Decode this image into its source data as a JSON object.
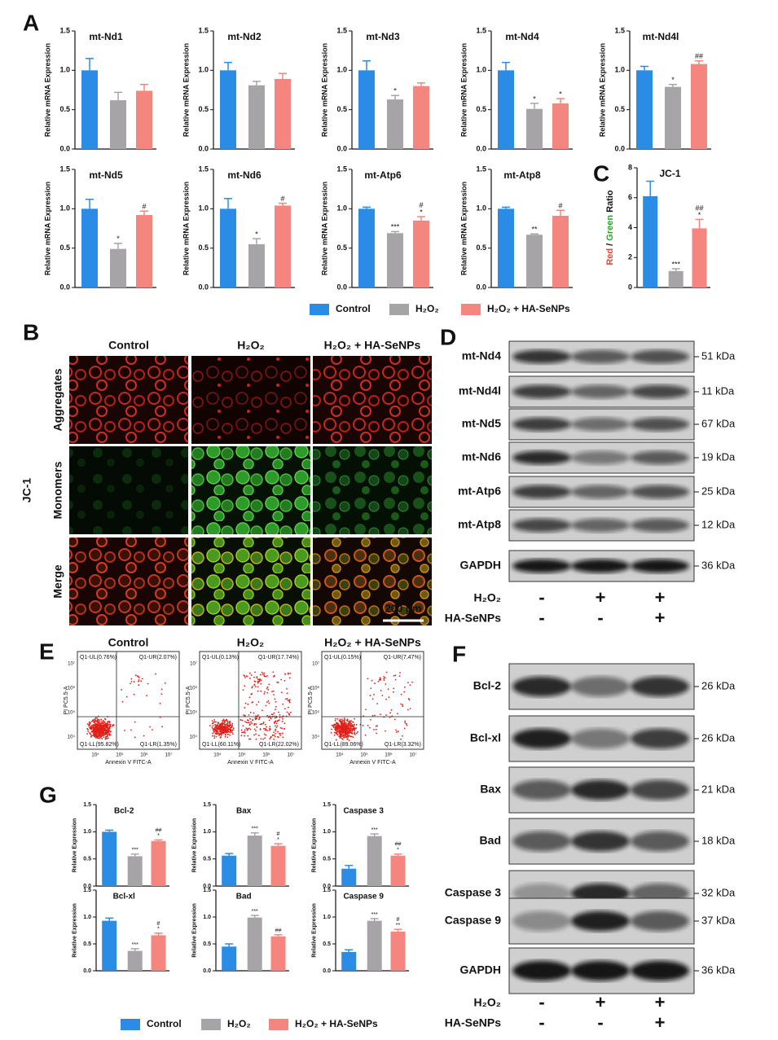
{
  "figure_labels": {
    "a": "A",
    "b": "B",
    "c": "C",
    "d": "D",
    "e": "E",
    "f": "F",
    "g": "G"
  },
  "chart_data": [
    {
      "type": "bar",
      "title": "mt-Nd1",
      "ylabel": "Relative mRNA Expression",
      "ylim": [
        0,
        1.5
      ],
      "yticks": [
        {
          "value": 0,
          "label": "0.0"
        },
        0.5,
        {
          "value": 1,
          "label": "1.0"
        },
        1.5
      ],
      "values": [
        1.0,
        0.62,
        0.74
      ],
      "errors": [
        0.15,
        0.1,
        0.08
      ],
      "annotations": [
        [],
        [],
        []
      ],
      "colors": [
        "#2b8ce6",
        "#a7a4a8",
        "#f5857f"
      ]
    },
    {
      "type": "bar",
      "title": "mt-Nd2",
      "ylabel": "Relative mRNA Expression",
      "ylim": [
        0,
        1.5
      ],
      "yticks": [
        {
          "value": 0,
          "label": "0.0"
        },
        0.5,
        {
          "value": 1,
          "label": "1.0"
        },
        1.5
      ],
      "values": [
        1.0,
        0.81,
        0.89
      ],
      "errors": [
        0.1,
        0.05,
        0.07
      ],
      "annotations": [
        [],
        [],
        []
      ],
      "colors": [
        "#2b8ce6",
        "#a7a4a8",
        "#f5857f"
      ]
    },
    {
      "type": "bar",
      "title": "mt-Nd3",
      "ylabel": "Relative mRNA Expression",
      "ylim": [
        0,
        1.5
      ],
      "yticks": [
        {
          "value": 0,
          "label": "0.0"
        },
        0.5,
        {
          "value": 1,
          "label": "1.0"
        },
        1.5
      ],
      "values": [
        1.0,
        0.63,
        0.8
      ],
      "errors": [
        0.12,
        0.05,
        0.04
      ],
      "annotations": [
        [],
        [
          "*"
        ],
        []
      ],
      "colors": [
        "#2b8ce6",
        "#a7a4a8",
        "#f5857f"
      ]
    },
    {
      "type": "bar",
      "title": "mt-Nd4",
      "ylabel": "Relative mRNA Expression",
      "ylim": [
        0,
        1.5
      ],
      "yticks": [
        {
          "value": 0,
          "label": "0.0"
        },
        0.5,
        {
          "value": 1,
          "label": "1.0"
        },
        1.5
      ],
      "values": [
        1.0,
        0.51,
        0.58
      ],
      "errors": [
        0.1,
        0.07,
        0.06
      ],
      "annotations": [
        [],
        [
          "*"
        ],
        [
          "*"
        ]
      ],
      "colors": [
        "#2b8ce6",
        "#a7a4a8",
        "#f5857f"
      ]
    },
    {
      "type": "bar",
      "title": "mt-Nd4l",
      "ylabel": "Relative mRNA Expression",
      "ylim": [
        0,
        1.5
      ],
      "yticks": [
        {
          "value": 0,
          "label": "0.0"
        },
        0.5,
        {
          "value": 1,
          "label": "1.0"
        },
        1.5
      ],
      "values": [
        1.0,
        0.79,
        1.08
      ],
      "errors": [
        0.05,
        0.03,
        0.04
      ],
      "annotations": [
        [],
        [
          "*"
        ],
        [
          "##"
        ]
      ],
      "colors": [
        "#2b8ce6",
        "#a7a4a8",
        "#f5857f"
      ]
    },
    {
      "type": "bar",
      "title": "mt-Nd5",
      "ylabel": "Relative mRNA Expression",
      "ylim": [
        0,
        1.5
      ],
      "yticks": [
        {
          "value": 0,
          "label": "0.0"
        },
        0.5,
        {
          "value": 1,
          "label": "1.0"
        },
        1.5
      ],
      "values": [
        1.0,
        0.49,
        0.92
      ],
      "errors": [
        0.12,
        0.07,
        0.05
      ],
      "annotations": [
        [],
        [
          "*"
        ],
        [
          "#"
        ]
      ],
      "colors": [
        "#2b8ce6",
        "#a7a4a8",
        "#f5857f"
      ]
    },
    {
      "type": "bar",
      "title": "mt-Nd6",
      "ylabel": "Relative mRNA Expression",
      "ylim": [
        0,
        1.5
      ],
      "yticks": [
        {
          "value": 0,
          "label": "0.0"
        },
        0.5,
        {
          "value": 1,
          "label": "1.0"
        },
        1.5
      ],
      "values": [
        1.0,
        0.55,
        1.04
      ],
      "errors": [
        0.13,
        0.07,
        0.03
      ],
      "annotations": [
        [],
        [
          "*"
        ],
        [
          "#"
        ]
      ],
      "colors": [
        "#2b8ce6",
        "#a7a4a8",
        "#f5857f"
      ]
    },
    {
      "type": "bar",
      "title": "mt-Atp6",
      "ylabel": "Relative mRNA Expression",
      "ylim": [
        0,
        1.5
      ],
      "yticks": [
        {
          "value": 0,
          "label": "0.0"
        },
        0.5,
        {
          "value": 1,
          "label": "1.0"
        },
        1.5
      ],
      "values": [
        1.0,
        0.69,
        0.85
      ],
      "errors": [
        0.02,
        0.02,
        0.05
      ],
      "annotations": [
        [],
        [
          "***"
        ],
        [
          "#",
          "*"
        ]
      ],
      "colors": [
        "#2b8ce6",
        "#a7a4a8",
        "#f5857f"
      ]
    },
    {
      "type": "bar",
      "title": "mt-Atp8",
      "ylabel": "Relative mRNA Expression",
      "ylim": [
        0,
        1.5
      ],
      "yticks": [
        {
          "value": 0,
          "label": "0.0"
        },
        0.5,
        {
          "value": 1,
          "label": "1.0"
        },
        1.5
      ],
      "values": [
        1.0,
        0.67,
        0.91
      ],
      "errors": [
        0.02,
        0.01,
        0.07
      ],
      "annotations": [
        [],
        [
          "**"
        ],
        [
          "#"
        ]
      ],
      "colors": [
        "#2b8ce6",
        "#a7a4a8",
        "#f5857f"
      ]
    },
    {
      "type": "bar",
      "title": "JC-1",
      "ylabel_parts": [
        {
          "text": "Red",
          "color": "#e8443a"
        },
        {
          "text": " / ",
          "color": "#111111"
        },
        {
          "text": "Green",
          "color": "#2aa52a"
        },
        {
          "text": " Ratio",
          "color": "#111111"
        }
      ],
      "ylim": [
        0,
        8
      ],
      "yticks": [
        0,
        2,
        4,
        6,
        8
      ],
      "values": [
        6.1,
        1.1,
        3.95
      ],
      "errors": [
        1.0,
        0.15,
        0.6
      ],
      "annotations": [
        [],
        [
          "***"
        ],
        [
          "##",
          "*"
        ]
      ],
      "colors": [
        "#2b8ce6",
        "#a7a4a8",
        "#f5857f"
      ]
    },
    {
      "type": "bar",
      "title": "Bcl-2",
      "ylabel": "Relative Expression",
      "ylim": [
        0,
        1.5
      ],
      "yticks": [
        {
          "value": 0,
          "label": "0.0"
        },
        0.5,
        {
          "value": 1,
          "label": "1.0"
        },
        1.5
      ],
      "values": [
        1.0,
        0.55,
        0.83
      ],
      "errors": [
        0.03,
        0.04,
        0.02
      ],
      "annotations": [
        [],
        [
          "***"
        ],
        [
          "##",
          "*"
        ]
      ],
      "colors": [
        "#2b8ce6",
        "#a7a4a8",
        "#f5857f"
      ]
    },
    {
      "type": "bar",
      "title": "Bax",
      "ylabel": "Relative Expression",
      "ylim": [
        0,
        1.5
      ],
      "yticks": [
        {
          "value": 0,
          "label": "0.0"
        },
        0.5,
        {
          "value": 1,
          "label": "1.0"
        },
        1.5
      ],
      "values": [
        0.56,
        0.93,
        0.74
      ],
      "errors": [
        0.04,
        0.05,
        0.04
      ],
      "annotations": [
        [],
        [
          "***"
        ],
        [
          "#",
          "*"
        ]
      ],
      "colors": [
        "#2b8ce6",
        "#a7a4a8",
        "#f5857f"
      ]
    },
    {
      "type": "bar",
      "title": "Caspase 3",
      "ylabel": "Relative Expression",
      "ylim": [
        0,
        1.5
      ],
      "yticks": [
        {
          "value": 0,
          "label": "0.0"
        },
        0.5,
        {
          "value": 1,
          "label": "1.0"
        },
        1.5
      ],
      "values": [
        0.32,
        0.92,
        0.56
      ],
      "errors": [
        0.06,
        0.04,
        0.03
      ],
      "annotations": [
        [],
        [
          "***"
        ],
        [
          "##",
          "*"
        ]
      ],
      "colors": [
        "#2b8ce6",
        "#a7a4a8",
        "#f5857f"
      ]
    },
    {
      "type": "bar",
      "title": "Bcl-xl",
      "ylabel": "Relative Expression",
      "ylim": [
        0,
        1.5
      ],
      "yticks": [
        {
          "value": 0,
          "label": "0.0"
        },
        0.5,
        {
          "value": 1,
          "label": "1.0"
        },
        1.5
      ],
      "values": [
        0.93,
        0.37,
        0.66
      ],
      "errors": [
        0.05,
        0.04,
        0.04
      ],
      "annotations": [
        [],
        [
          "***"
        ],
        [
          "#",
          "*"
        ]
      ],
      "colors": [
        "#2b8ce6",
        "#a7a4a8",
        "#f5857f"
      ]
    },
    {
      "type": "bar",
      "title": "Bad",
      "ylabel": "Relative Expression",
      "ylim": [
        0,
        1.5
      ],
      "yticks": [
        {
          "value": 0,
          "label": "0.0"
        },
        0.5,
        {
          "value": 1,
          "label": "1.0"
        },
        1.5
      ],
      "values": [
        0.45,
        0.99,
        0.64
      ],
      "errors": [
        0.05,
        0.04,
        0.03
      ],
      "annotations": [
        [],
        [
          "***"
        ],
        [
          "##"
        ]
      ],
      "colors": [
        "#2b8ce6",
        "#a7a4a8",
        "#f5857f"
      ]
    },
    {
      "type": "bar",
      "title": "Caspase 9",
      "ylabel": "Relative Expression",
      "ylim": [
        0,
        1.5
      ],
      "yticks": [
        {
          "value": 0,
          "label": "0.0"
        },
        0.5,
        {
          "value": 1,
          "label": "1.0"
        },
        1.5
      ],
      "values": [
        0.35,
        0.93,
        0.73
      ],
      "errors": [
        0.04,
        0.04,
        0.04
      ],
      "annotations": [
        [],
        [
          "***"
        ],
        [
          "#",
          "**"
        ]
      ],
      "colors": [
        "#2b8ce6",
        "#a7a4a8",
        "#f5857f"
      ]
    }
  ],
  "legend_a": {
    "items": [
      {
        "name": "Control",
        "color": "#2b8ce6"
      },
      {
        "name": "H₂O₂",
        "color": "#a7a4a8"
      },
      {
        "name": "H₂O₂ + HA-SeNPs",
        "color": "#f5857f"
      }
    ]
  },
  "legend_g": {
    "items": [
      {
        "name": "Control",
        "color": "#2b8ce6"
      },
      {
        "name": "H₂O₂",
        "color": "#a7a4a8"
      },
      {
        "name": "H₂O₂ + HA-SeNPs",
        "color": "#f5857f"
      }
    ]
  },
  "panel_b": {
    "columns": [
      "Control",
      "H₂O₂",
      "H₂O₂ + HA-SeNPs"
    ],
    "rows": [
      {
        "label": "Aggregates",
        "color": "#d8231c"
      },
      {
        "label": "Monomers",
        "color": "#1f9a2a"
      },
      {
        "label": "Merge",
        "color": "#111111"
      }
    ],
    "group_label": "JC-1",
    "scale_bar": "200 μm"
  },
  "panel_d": {
    "rows": [
      {
        "label": "mt-Nd4",
        "size": "51 kDa"
      },
      {
        "label": "mt-Nd4l",
        "size": "11 kDa"
      },
      {
        "label": "mt-Nd5",
        "size": "67 kDa"
      },
      {
        "label": "mt-Nd6",
        "size": "19 kDa"
      },
      {
        "label": "mt-Atp6",
        "size": "25 kDa"
      },
      {
        "label": "mt-Atp8",
        "size": "12 kDa"
      },
      {
        "label": "GAPDH",
        "size": "36 kDa"
      }
    ],
    "treatments": [
      {
        "label": "H₂O₂",
        "color": "#1f7fd6",
        "signs": [
          "-",
          "+",
          "+"
        ]
      },
      {
        "label": "HA-SeNPs",
        "color": "#d62020",
        "signs": [
          "-",
          "-",
          "+"
        ]
      }
    ]
  },
  "panel_e": {
    "titles": [
      "Control",
      "H₂O₂",
      "H₂O₂ + HA-SeNPs"
    ],
    "xlabel": "Annexin V FITC-A",
    "ylabel": "PI PC5.5-A",
    "xticks": [
      "10⁴",
      "10⁵",
      "10⁶",
      "10⁷"
    ],
    "yticks": [
      "10⁴",
      "10⁵",
      "10⁶",
      "10⁷"
    ],
    "quadrants": [
      [
        "Q1-UL(0.76%)",
        "Q1-UR(2.07%)",
        "Q1-LL(95.82%)",
        "Q1-LR(1.35%)"
      ],
      [
        "Q1-UL(0.13%)",
        "Q1-UR(17.74%)",
        "Q1-LL(60.11%)",
        "Q1-LR(22.02%)"
      ],
      [
        "Q1-UL(0.15%)",
        "Q1-UR(7.47%)",
        "Q1-LL(89.06%)",
        "Q1-LR(3.32%)"
      ]
    ]
  },
  "panel_f": {
    "rows": [
      {
        "label": "Bcl-2",
        "size": "26 kDa"
      },
      {
        "label": "Bcl-xl",
        "size": "26 kDa"
      },
      {
        "label": "Bax",
        "size": "21 kDa"
      },
      {
        "label": "Bad",
        "size": "18 kDa"
      },
      {
        "label": "Caspase 3",
        "size": "32 kDa"
      },
      {
        "label": "Caspase 9",
        "size": "37 kDa"
      },
      {
        "label": "GAPDH",
        "size": "36 kDa"
      }
    ],
    "treatments": [
      {
        "label": "H₂O₂",
        "color": "#1f7fd6",
        "signs": [
          "-",
          "+",
          "+"
        ]
      },
      {
        "label": "HA-SeNPs",
        "color": "#d62020",
        "signs": [
          "-",
          "-",
          "+"
        ]
      }
    ]
  }
}
